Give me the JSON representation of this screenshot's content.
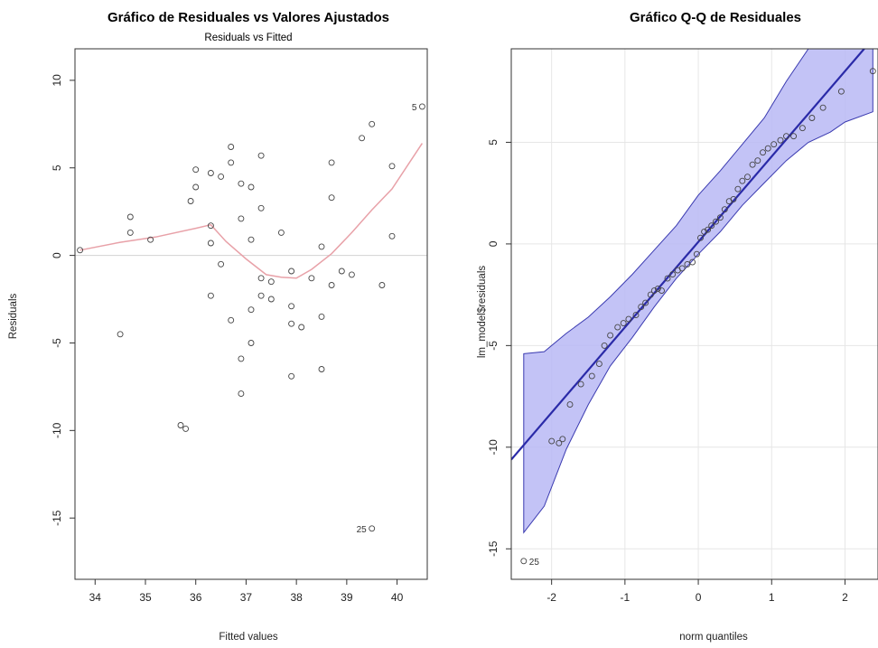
{
  "chart_data": [
    {
      "type": "scatter",
      "title": "Gráfico de Residuales vs Valores Ajustados",
      "subtitle": "Residuals vs Fitted",
      "xlabel": "Fitted values",
      "ylabel": "Residuals",
      "xlim": [
        33.6,
        40.6
      ],
      "ylim": [
        -18.5,
        11.8
      ],
      "xticks": [
        34,
        35,
        36,
        37,
        38,
        39,
        40
      ],
      "yticks": [
        -15,
        -10,
        -5,
        0,
        5,
        10
      ],
      "reference_line_y": 0,
      "grid": false,
      "points": [
        [
          33.7,
          0.3
        ],
        [
          34.5,
          -4.5
        ],
        [
          34.7,
          2.2
        ],
        [
          34.7,
          1.3
        ],
        [
          35.1,
          0.9
        ],
        [
          35.7,
          -9.7
        ],
        [
          35.8,
          -9.9
        ],
        [
          35.9,
          3.1
        ],
        [
          36.0,
          4.9
        ],
        [
          36.0,
          3.9
        ],
        [
          36.3,
          4.7
        ],
        [
          36.3,
          1.7
        ],
        [
          36.3,
          0.7
        ],
        [
          36.3,
          -2.3
        ],
        [
          36.5,
          4.5
        ],
        [
          36.5,
          -0.5
        ],
        [
          36.7,
          6.2
        ],
        [
          36.7,
          5.3
        ],
        [
          36.7,
          -3.7
        ],
        [
          36.9,
          4.1
        ],
        [
          36.9,
          2.1
        ],
        [
          36.9,
          -5.9
        ],
        [
          36.9,
          -7.9
        ],
        [
          37.1,
          3.9
        ],
        [
          37.1,
          0.9
        ],
        [
          37.1,
          -3.1
        ],
        [
          37.1,
          -5.0
        ],
        [
          37.3,
          5.7
        ],
        [
          37.3,
          2.7
        ],
        [
          37.3,
          -1.3
        ],
        [
          37.3,
          -2.3
        ],
        [
          37.5,
          -1.5
        ],
        [
          37.5,
          -2.5
        ],
        [
          37.7,
          1.3
        ],
        [
          37.9,
          -0.9
        ],
        [
          37.9,
          -2.9
        ],
        [
          37.9,
          -3.9
        ],
        [
          37.9,
          -6.9
        ],
        [
          38.1,
          -4.1
        ],
        [
          38.3,
          -1.3
        ],
        [
          38.5,
          0.5
        ],
        [
          38.5,
          -3.5
        ],
        [
          38.5,
          -6.5
        ],
        [
          38.7,
          5.3
        ],
        [
          38.7,
          3.3
        ],
        [
          38.7,
          -1.7
        ],
        [
          38.9,
          -0.9
        ],
        [
          39.1,
          -1.1
        ],
        [
          39.3,
          6.7
        ],
        [
          39.5,
          7.5
        ],
        [
          39.5,
          -15.6
        ],
        [
          39.7,
          -1.7
        ],
        [
          39.9,
          5.1
        ],
        [
          39.9,
          1.1
        ],
        [
          40.5,
          8.5
        ]
      ],
      "point_labels": [
        {
          "text": "25",
          "x": 39.5,
          "y": -15.6
        },
        {
          "text": "5",
          "x": 40.5,
          "y": 8.5
        }
      ],
      "smooth_line": {
        "color": "#e8a1a8",
        "points": [
          [
            33.7,
            0.3
          ],
          [
            34.5,
            0.75
          ],
          [
            35.2,
            1.05
          ],
          [
            36.0,
            1.55
          ],
          [
            36.3,
            1.75
          ],
          [
            36.6,
            0.8
          ],
          [
            37.0,
            -0.2
          ],
          [
            37.4,
            -1.1
          ],
          [
            37.7,
            -1.25
          ],
          [
            38.0,
            -1.3
          ],
          [
            38.3,
            -0.8
          ],
          [
            38.7,
            0.1
          ],
          [
            39.1,
            1.3
          ],
          [
            39.5,
            2.6
          ],
          [
            39.9,
            3.8
          ],
          [
            40.5,
            6.4
          ]
        ]
      },
      "point_color": "#444444",
      "reference_line_color": "#d3d3d3"
    },
    {
      "type": "scatter",
      "title": "Gráfico Q-Q de Residuales",
      "xlabel": "norm quantiles",
      "ylabel": "lm_model$residuals",
      "xlim": [
        -2.55,
        2.45
      ],
      "ylim": [
        -16.5,
        9.6
      ],
      "xticks": [
        -2,
        -1,
        0,
        1,
        2
      ],
      "yticks": [
        -15,
        -10,
        -5,
        0,
        5
      ],
      "grid": true,
      "reference_line": {
        "slope": 4.2,
        "intercept": 0.1,
        "color": "#2a2aa8"
      },
      "confidence_band": {
        "color": "#b8b8f4",
        "x": [
          -2.38,
          -2.1,
          -1.8,
          -1.5,
          -1.2,
          -0.9,
          -0.6,
          -0.3,
          0,
          0.3,
          0.6,
          0.9,
          1.2,
          1.5,
          1.8,
          2.0,
          2.38
        ],
        "lower": [
          -14.2,
          -12.9,
          -10.1,
          -7.9,
          -6.0,
          -4.6,
          -3.1,
          -1.7,
          -0.5,
          0.6,
          1.9,
          3.0,
          4.1,
          5.0,
          5.5,
          6.0,
          6.5
        ],
        "upper": [
          -5.4,
          -5.3,
          -4.4,
          -3.6,
          -2.6,
          -1.5,
          -0.3,
          0.9,
          2.4,
          3.6,
          4.9,
          6.2,
          8.0,
          9.6,
          10.5,
          11.4,
          12.0
        ]
      },
      "points": [
        [
          -2.38,
          -15.6
        ],
        [
          -2.0,
          -9.7
        ],
        [
          -1.9,
          -9.8
        ],
        [
          -1.85,
          -9.6
        ],
        [
          -1.75,
          -7.9
        ],
        [
          -1.6,
          -6.9
        ],
        [
          -1.45,
          -6.5
        ],
        [
          -1.35,
          -5.9
        ],
        [
          -1.28,
          -5.0
        ],
        [
          -1.2,
          -4.5
        ],
        [
          -1.1,
          -4.1
        ],
        [
          -1.02,
          -3.9
        ],
        [
          -0.95,
          -3.7
        ],
        [
          -0.85,
          -3.5
        ],
        [
          -0.78,
          -3.1
        ],
        [
          -0.72,
          -2.9
        ],
        [
          -0.65,
          -2.5
        ],
        [
          -0.6,
          -2.3
        ],
        [
          -0.55,
          -2.2
        ],
        [
          -0.5,
          -2.3
        ],
        [
          -0.42,
          -1.7
        ],
        [
          -0.35,
          -1.5
        ],
        [
          -0.28,
          -1.3
        ],
        [
          -0.22,
          -1.2
        ],
        [
          -0.15,
          -1.0
        ],
        [
          -0.08,
          -0.9
        ],
        [
          -0.02,
          -0.5
        ],
        [
          0.03,
          0.3
        ],
        [
          0.08,
          0.6
        ],
        [
          0.13,
          0.7
        ],
        [
          0.18,
          0.9
        ],
        [
          0.24,
          1.1
        ],
        [
          0.3,
          1.3
        ],
        [
          0.36,
          1.7
        ],
        [
          0.42,
          2.1
        ],
        [
          0.48,
          2.2
        ],
        [
          0.54,
          2.7
        ],
        [
          0.6,
          3.1
        ],
        [
          0.67,
          3.3
        ],
        [
          0.74,
          3.9
        ],
        [
          0.81,
          4.1
        ],
        [
          0.88,
          4.5
        ],
        [
          0.95,
          4.7
        ],
        [
          1.03,
          4.9
        ],
        [
          1.12,
          5.1
        ],
        [
          1.2,
          5.3
        ],
        [
          1.3,
          5.3
        ],
        [
          1.42,
          5.7
        ],
        [
          1.55,
          6.2
        ],
        [
          1.7,
          6.7
        ],
        [
          1.95,
          7.5
        ],
        [
          2.38,
          8.5
        ]
      ],
      "point_labels": [
        {
          "text": "25",
          "x": -2.38,
          "y": -15.6
        }
      ],
      "point_color": "#444444"
    }
  ]
}
